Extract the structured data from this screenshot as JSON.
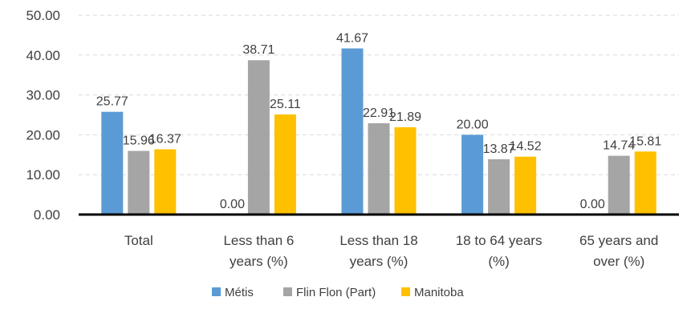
{
  "chart_data": {
    "type": "bar",
    "categories": [
      [
        "Total"
      ],
      [
        "Less than 6",
        "years (%)"
      ],
      [
        "Less than 18",
        "years (%)"
      ],
      [
        "18 to 64 years",
        "(%)"
      ],
      [
        "65 years and",
        "over (%)"
      ]
    ],
    "series": [
      {
        "name": "Métis",
        "color": "#5b9bd5",
        "values": [
          25.77,
          0.0,
          41.67,
          20.0,
          0.0
        ]
      },
      {
        "name": "Flin Flon (Part)",
        "color": "#a5a5a5",
        "values": [
          15.96,
          38.71,
          22.91,
          13.87,
          14.74
        ]
      },
      {
        "name": "Manitoba",
        "color": "#ffc000",
        "values": [
          16.37,
          25.11,
          21.89,
          14.52,
          15.81
        ]
      }
    ],
    "y_ticks": [
      "0.00",
      "10.00",
      "20.00",
      "30.00",
      "40.00",
      "50.00"
    ],
    "ylim": [
      0,
      50
    ],
    "grid": true,
    "legend_position": "bottom",
    "title": "",
    "xlabel": "",
    "ylabel": ""
  }
}
